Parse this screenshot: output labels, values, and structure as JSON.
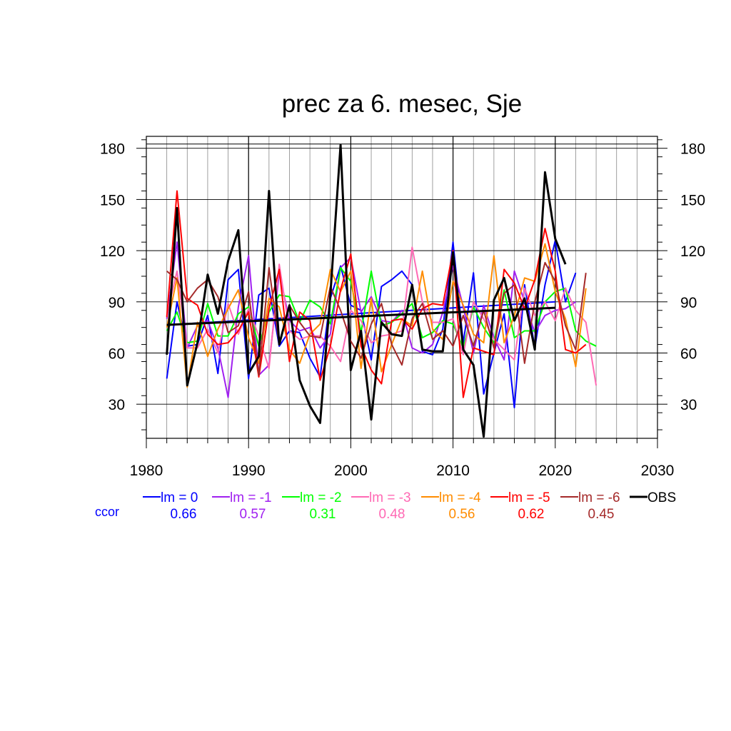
{
  "chart_data": {
    "type": "line",
    "title": "prec za 6. mesec, Sje",
    "xlabel": "",
    "ylabel": "",
    "xlim": [
      1980,
      2030
    ],
    "ylim": [
      10,
      187
    ],
    "x_ticks": [
      "1980",
      "1990",
      "2000",
      "2010",
      "2020",
      "2030"
    ],
    "y_ticks": [
      "30",
      "60",
      "90",
      "120",
      "150",
      "180"
    ],
    "grid": true,
    "legend_position": "bottom",
    "ccor_label": "ccor",
    "colors": {
      "lm0": "#0000ff",
      "lm1": "#a020f0",
      "lm2": "#00ff00",
      "lm3": "#ff69b4",
      "lm4": "#ff8c00",
      "lm5": "#ff0000",
      "lm6": "#a52a2a",
      "obs": "#000000",
      "ccor_label": "#0000ff"
    },
    "series": [
      {
        "name": "lm = 0",
        "ccor": "0.66",
        "color": "#0000ff",
        "x_start": 1982,
        "values": [
          45,
          90,
          64,
          65,
          82,
          48,
          103,
          109,
          45,
          94,
          98,
          64,
          73,
          72,
          57,
          46,
          92,
          111,
          88,
          85,
          56,
          99,
          103,
          108,
          100,
          61,
          59,
          74,
          125,
          66,
          107,
          36,
          60,
          83,
          28,
          100,
          63,
          100,
          126,
          90,
          107
        ],
        "trend": [
          76.5,
          90
        ]
      },
      {
        "name": "lm = -1",
        "ccor": "0.57",
        "color": "#a020f0",
        "x_start": 1982,
        "values": [
          80,
          125,
          63,
          76,
          79,
          63,
          34,
          87,
          117,
          47,
          53,
          107,
          79,
          73,
          75,
          63,
          71,
          110,
          116,
          84,
          93,
          79,
          78,
          85,
          63,
          60,
          65,
          84,
          111,
          87,
          60,
          88,
          69,
          56,
          108,
          90,
          72,
          82,
          85,
          86,
          90
        ]
      },
      {
        "name": "lm = -2",
        "ccor": "0.31",
        "color": "#00ff00",
        "x_start": 1982,
        "values": [
          73,
          84,
          66,
          67,
          89,
          70,
          70,
          83,
          87,
          64,
          84,
          94,
          93,
          78,
          91,
          87,
          77,
          110,
          102,
          72,
          108,
          76,
          78,
          83,
          89,
          69,
          72,
          79,
          77,
          63,
          87,
          75,
          66,
          97,
          69,
          73,
          73,
          90,
          96,
          98,
          73,
          67,
          64
        ]
      },
      {
        "name": "lm = -3",
        "ccor": "0.48",
        "color": "#ff69b4",
        "x_start": 1982,
        "values": [
          82,
          108,
          63,
          63,
          74,
          60,
          89,
          71,
          86,
          70,
          51,
          112,
          73,
          68,
          70,
          70,
          64,
          55,
          85,
          79,
          66,
          70,
          71,
          73,
          122,
          90,
          78,
          78,
          80,
          59,
          90,
          80,
          68,
          62,
          56,
          98,
          82,
          90,
          79,
          98,
          85,
          78,
          41
        ]
      },
      {
        "name": "lm = -4",
        "ccor": "0.56",
        "color": "#ff8c00",
        "x_start": 1982,
        "values": [
          75,
          104,
          40,
          78,
          58,
          74,
          86,
          97,
          69,
          54,
          92,
          87,
          62,
          54,
          71,
          77,
          109,
          96,
          108,
          51,
          92,
          49,
          65,
          80,
          76,
          108,
          74,
          68,
          102,
          88,
          71,
          66,
          117,
          66,
          82,
          104,
          102,
          124,
          96,
          80,
          52,
          98
        ]
      },
      {
        "name": "lm = -5",
        "ccor": "0.62",
        "color": "#ff0000",
        "x_start": 1982,
        "values": [
          81,
          155,
          92,
          88,
          71,
          65,
          66,
          73,
          84,
          46,
          86,
          109,
          55,
          84,
          79,
          44,
          64,
          97,
          118,
          64,
          50,
          42,
          79,
          80,
          74,
          86,
          89,
          88,
          120,
          34,
          63,
          61,
          59,
          109,
          101,
          86,
          103,
          133,
          108,
          62,
          60,
          65
        ]
      },
      {
        "name": "lm = -6",
        "ccor": "0.45",
        "color": "#a52a2a",
        "x_start": 1982,
        "values": [
          108,
          103,
          90,
          98,
          103,
          93,
          72,
          76,
          96,
          47,
          110,
          65,
          88,
          78,
          70,
          69,
          99,
          85,
          67,
          57,
          77,
          89,
          65,
          53,
          80,
          89,
          68,
          73,
          64,
          82,
          64,
          85,
          63,
          95,
          100,
          54,
          90,
          113,
          102,
          76,
          62,
          107
        ]
      },
      {
        "name": "OBS",
        "ccor": "",
        "color": "#000000",
        "x_start": 1982,
        "values": [
          59,
          145,
          41,
          66,
          106,
          83,
          114,
          132,
          48,
          58,
          155,
          65,
          88,
          44,
          29,
          19,
          94,
          182,
          50,
          73,
          21,
          78,
          71,
          70,
          100,
          62,
          61,
          61,
          119,
          62,
          53,
          11,
          91,
          104,
          79,
          92,
          62,
          166,
          127,
          112
        ],
        "trend": [
          76.5,
          86.5
        ]
      }
    ]
  }
}
